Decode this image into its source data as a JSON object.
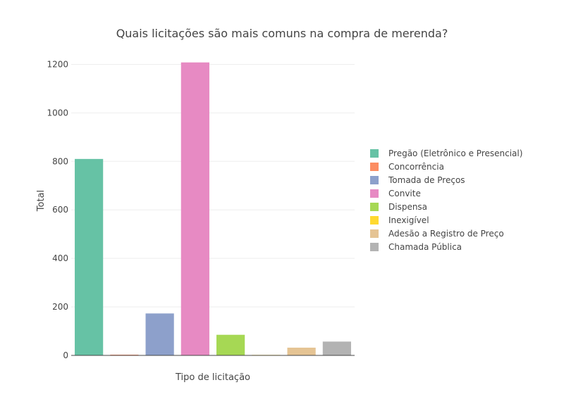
{
  "chart_data": {
    "type": "bar",
    "title": "Quais licitações são mais comuns na compra de merenda?",
    "xlabel": "Tipo de licitação",
    "ylabel": "Total",
    "ylim": [
      0,
      1210
    ],
    "yticks": [
      0,
      200,
      400,
      600,
      800,
      1000,
      1200
    ],
    "grid": true,
    "legend_position": "right",
    "categories": [
      "Pregão (Eletrônico e Presencial)",
      "Concorrência",
      "Tomada de Preços",
      "Convite",
      "Dispensa",
      "Inexigível",
      "Adesão a Registro de Preço",
      "Chamada Pública"
    ],
    "values": [
      810,
      3,
      173,
      1208,
      85,
      2,
      32,
      57
    ],
    "colors": [
      "#66c2a5",
      "#fc8d62",
      "#8da0cb",
      "#e78ac3",
      "#a6d854",
      "#ffd92f",
      "#e5c494",
      "#b3b3b3"
    ]
  }
}
